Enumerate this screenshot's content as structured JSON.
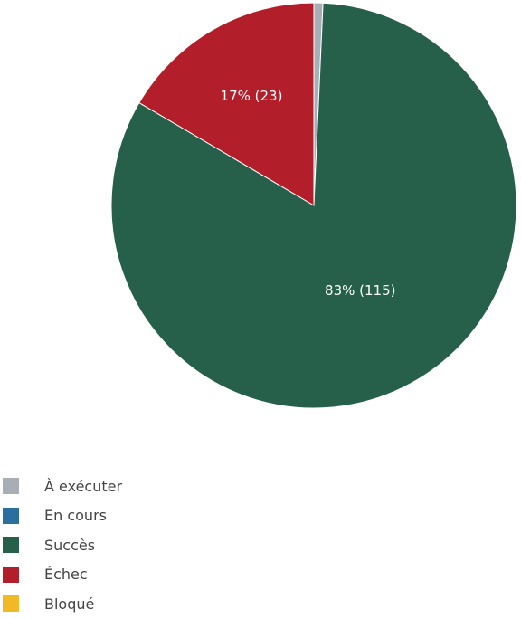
{
  "chart_data": {
    "type": "pie",
    "slices": [
      {
        "name": "À exécuter",
        "value": 1,
        "color": "#a7aeb5",
        "label": ""
      },
      {
        "name": "En cours",
        "value": 0,
        "color": "#2a6fa0",
        "label": ""
      },
      {
        "name": "Succès",
        "value": 115,
        "color": "#26604b",
        "label": "83% (115)"
      },
      {
        "name": "Échec",
        "value": 23,
        "color": "#b21f2a",
        "label": "17% (23)"
      },
      {
        "name": "Bloqué",
        "value": 0,
        "color": "#f2b927",
        "label": ""
      }
    ],
    "legend_position": "bottom-left"
  }
}
